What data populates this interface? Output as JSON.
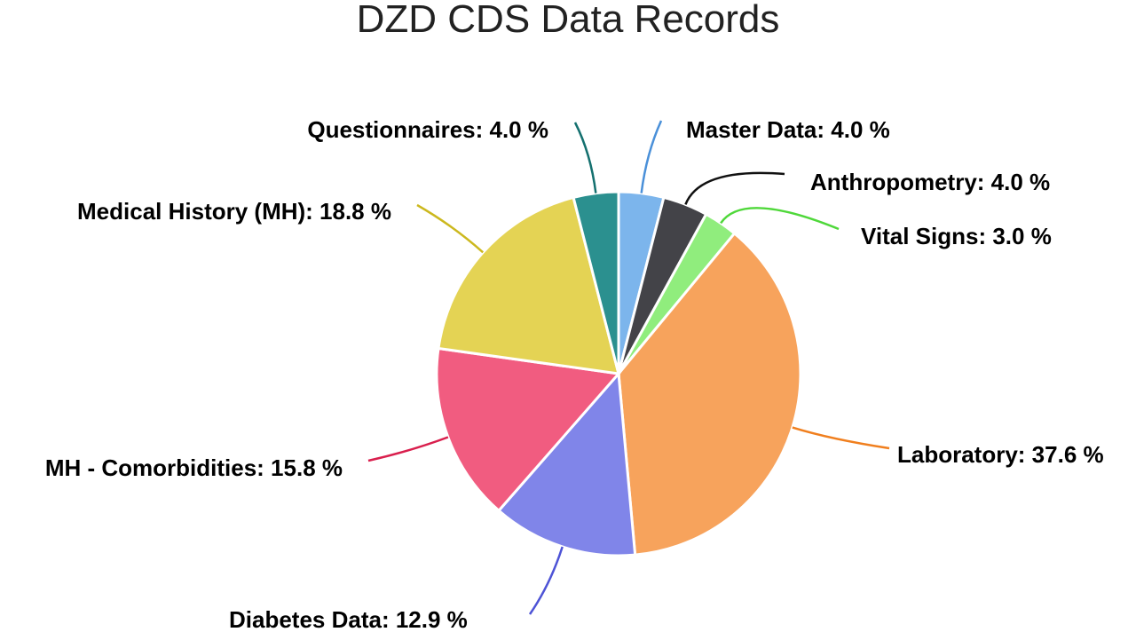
{
  "chart_data": {
    "type": "pie",
    "title": "DZD CDS Data Records",
    "start": "top",
    "direction": "clockwise",
    "slices": [
      {
        "name": "Master Data",
        "value": 4.0,
        "label": "Master Data: 4.0 %",
        "color": "#7cb5ec",
        "line": "#4a90d9"
      },
      {
        "name": "Anthropometry",
        "value": 4.0,
        "label": "Anthropometry: 4.0 %",
        "color": "#434348",
        "line": "#111111"
      },
      {
        "name": "Vital Signs",
        "value": 3.0,
        "label": "Vital Signs: 3.0 %",
        "color": "#90ed7d",
        "line": "#4fd83a"
      },
      {
        "name": "Laboratory",
        "value": 37.6,
        "label": "Laboratory: 37.6 %",
        "color": "#f7a35c",
        "line": "#f07f1e"
      },
      {
        "name": "Diabetes Data",
        "value": 12.9,
        "label": "Diabetes Data: 12.9 %",
        "color": "#8085e9",
        "line": "#4d53d6"
      },
      {
        "name": "MH - Comorbidities",
        "value": 15.8,
        "label": "MH - Comorbidities: 15.8 %",
        "color": "#f15c80",
        "line": "#d91f4d"
      },
      {
        "name": "Medical History (MH)",
        "value": 18.8,
        "label": "Medical History (MH): 18.8 %",
        "color": "#e4d354",
        "line": "#ccb81e"
      },
      {
        "name": "Questionnaires",
        "value": 4.0,
        "label": "Questionnaires: 4.0 %",
        "color": "#2b908f",
        "line": "#14706f"
      }
    ]
  }
}
